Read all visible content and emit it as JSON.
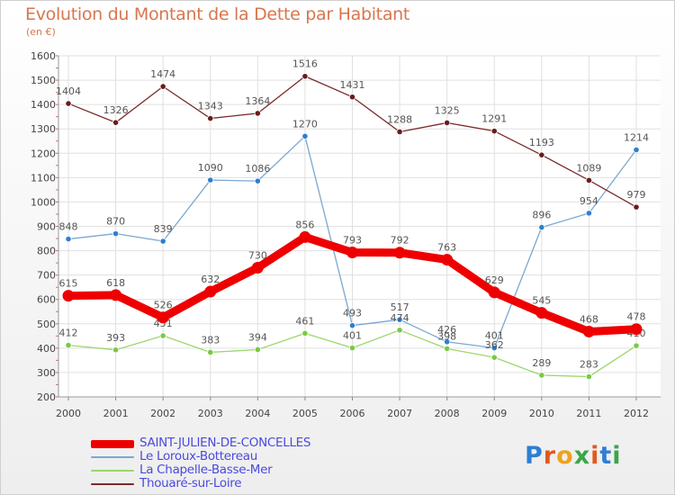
{
  "title": "Evolution du Montant de la Dette par Habitant",
  "subtitle": "(en €)",
  "logo": {
    "text": "Proxiti",
    "colors": [
      "#2e7fd0",
      "#e05a1e",
      "#f0a21c",
      "#3aa64a",
      "#e05a1e",
      "#2e7fd0",
      "#3aa64a"
    ]
  },
  "chart_data": {
    "type": "line",
    "title": "Evolution du Montant de la Dette par Habitant",
    "ylabel": "(en €)",
    "xlabel": "",
    "x": [
      "2000",
      "2001",
      "2002",
      "2003",
      "2004",
      "2005",
      "2006",
      "2007",
      "2008",
      "2009",
      "2010",
      "2011",
      "2012"
    ],
    "ylim": [
      200,
      1600
    ],
    "yticks": [
      "200",
      "300",
      "400",
      "500",
      "600",
      "700",
      "800",
      "900",
      "1000",
      "1100",
      "1200",
      "1300",
      "1400",
      "1500",
      "1600"
    ],
    "grid": true,
    "legend_position": "bottom-left",
    "series": [
      {
        "name": "SAINT-JULIEN-DE-CONCELLES",
        "color": "#ee0000",
        "thick": true,
        "values": [
          615,
          618,
          526,
          632,
          730,
          856,
          793,
          792,
          763,
          629,
          545,
          468,
          478
        ]
      },
      {
        "name": "Le Loroux-Bottereau",
        "color": "#7aa8d4",
        "marker": "#2e7fcf",
        "values": [
          848,
          870,
          839,
          1090,
          1086,
          1270,
          493,
          517,
          426,
          401,
          896,
          954,
          1214
        ]
      },
      {
        "name": "La Chapelle-Basse-Mer",
        "color": "#9cd66e",
        "marker": "#7ac943",
        "values": [
          412,
          393,
          451,
          383,
          394,
          461,
          401,
          474,
          398,
          362,
          289,
          283,
          410
        ]
      },
      {
        "name": "Thouaré-sur-Loire",
        "color": "#7a2a2a",
        "marker": "#6b1b1b",
        "values": [
          1404,
          1326,
          1474,
          1343,
          1364,
          1516,
          1431,
          1288,
          1325,
          1291,
          1193,
          1089,
          979
        ]
      }
    ]
  }
}
